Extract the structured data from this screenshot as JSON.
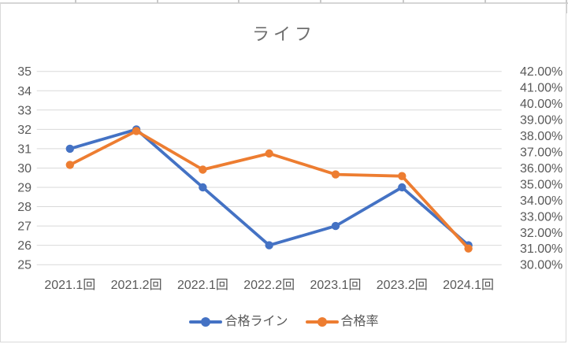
{
  "chart_data": {
    "type": "line",
    "title": "ライフ",
    "categories": [
      "2021.1回",
      "2021.2回",
      "2022.1回",
      "2022.2回",
      "2023.1回",
      "2023.2回",
      "2024.1回"
    ],
    "series": [
      {
        "name": "合格ライン",
        "axis": "left",
        "color": "#4472C4",
        "marker": "circle",
        "values": [
          31,
          32,
          29,
          26,
          27,
          29,
          26
        ]
      },
      {
        "name": "合格率",
        "axis": "right",
        "color": "#ED7D31",
        "marker": "circle",
        "values": [
          36.2,
          38.3,
          35.9,
          36.9,
          35.6,
          35.5,
          31.0
        ]
      }
    ],
    "left_axis": {
      "min": 25,
      "max": 35,
      "step": 1,
      "tick_labels": [
        "35",
        "34",
        "33",
        "32",
        "31",
        "30",
        "29",
        "28",
        "27",
        "26",
        "25"
      ]
    },
    "right_axis": {
      "min": 30,
      "max": 42,
      "step": 1,
      "format": "percent",
      "tick_labels": [
        "42.00%",
        "41.00%",
        "40.00%",
        "39.00%",
        "38.00%",
        "37.00%",
        "36.00%",
        "35.00%",
        "34.00%",
        "33.00%",
        "32.00%",
        "31.00%",
        "30.00%"
      ]
    },
    "grid": "horizontal-only",
    "legend_position": "bottom",
    "colors": {
      "gridline": "#D9D9D9",
      "axis_text": "#595959",
      "title_text": "#6E6E6E",
      "chart_border": "#D9D9D9"
    }
  }
}
